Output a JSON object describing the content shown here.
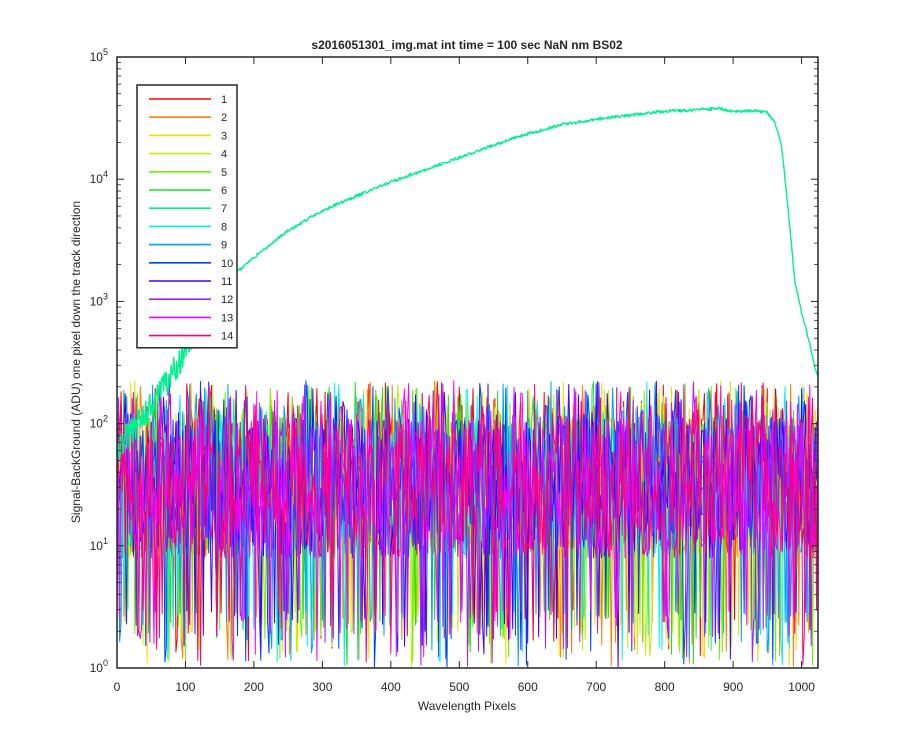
{
  "chart_data": {
    "type": "line",
    "title": "s2016051301_img.mat int time = 100 sec  NaN nm BS02",
    "xlabel": "Wavelength Pixels",
    "ylabel": "Signal-BackGround (ADU) one pixel down the track direction",
    "xlim": [
      0,
      1024
    ],
    "ylim": [
      1,
      100000
    ],
    "y_scale": "log",
    "grid": false,
    "legend_position": "top-left",
    "x_ticks": [
      "0",
      "100",
      "200",
      "300",
      "400",
      "500",
      "600",
      "700",
      "800",
      "900",
      "1000"
    ],
    "y_ticks": [
      {
        "base": "10",
        "exp": "0"
      },
      {
        "base": "10",
        "exp": "1"
      },
      {
        "base": "10",
        "exp": "2"
      },
      {
        "base": "10",
        "exp": "3"
      },
      {
        "base": "10",
        "exp": "4"
      },
      {
        "base": "10",
        "exp": "5"
      }
    ],
    "series": [
      {
        "name": "1",
        "color": "#ff0000",
        "type": "noise",
        "typical": 40
      },
      {
        "name": "2",
        "color": "#ff7f00",
        "type": "noise",
        "typical": 40
      },
      {
        "name": "3",
        "color": "#ffd700",
        "type": "noise",
        "typical": 40
      },
      {
        "name": "4",
        "color": "#c0f000",
        "type": "noise",
        "typical": 40
      },
      {
        "name": "5",
        "color": "#70f000",
        "type": "noise",
        "typical": 40
      },
      {
        "name": "6",
        "color": "#20e020",
        "type": "noise",
        "typical": 40
      },
      {
        "name": "7",
        "color": "#00f090",
        "type": "spectrum",
        "x": [
          0,
          30,
          60,
          90,
          120,
          150,
          200,
          250,
          300,
          350,
          400,
          450,
          500,
          550,
          600,
          650,
          700,
          750,
          800,
          850,
          880,
          900,
          930,
          950,
          960,
          970,
          980,
          990,
          1000,
          1010,
          1020,
          1024
        ],
        "y": [
          60,
          100,
          160,
          320,
          700,
          1300,
          2300,
          3800,
          5500,
          7300,
          9500,
          12000,
          15000,
          19000,
          23500,
          28000,
          31000,
          33500,
          36000,
          37000,
          38000,
          36000,
          36500,
          35000,
          30000,
          20000,
          6000,
          1500,
          800,
          500,
          280,
          250
        ]
      },
      {
        "name": "8",
        "color": "#00f0f0",
        "type": "noise",
        "typical": 40
      },
      {
        "name": "9",
        "color": "#00a0ff",
        "type": "noise",
        "typical": 40
      },
      {
        "name": "10",
        "color": "#0040ff",
        "type": "noise",
        "typical": 40
      },
      {
        "name": "11",
        "color": "#4000ff",
        "type": "noise",
        "typical": 40
      },
      {
        "name": "12",
        "color": "#a020ff",
        "type": "noise",
        "typical": 40
      },
      {
        "name": "13",
        "color": "#ff00ff",
        "type": "noise",
        "typical": 40
      },
      {
        "name": "14",
        "color": "#ff0070",
        "type": "noise",
        "typical": 40
      }
    ]
  }
}
